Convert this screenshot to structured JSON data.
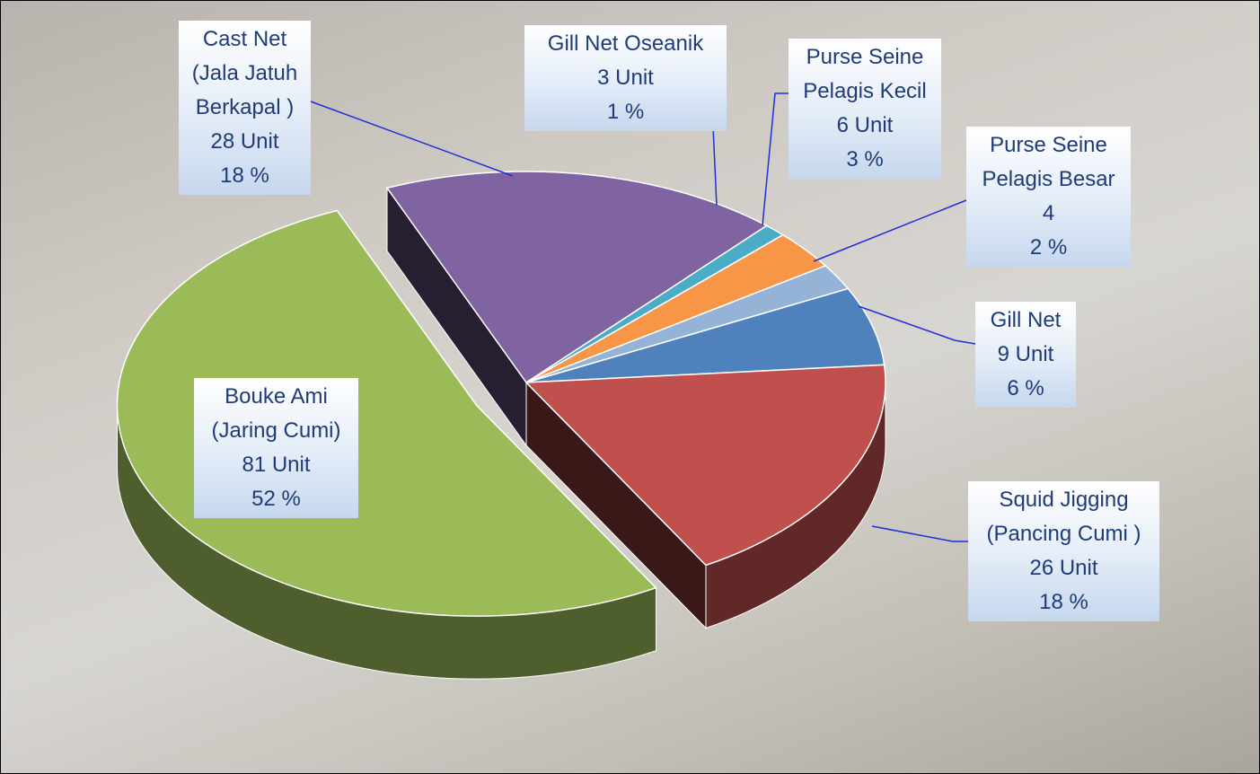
{
  "chart_data": {
    "type": "pie",
    "categories": [
      "Bouke Ami\n(Jaring Cumi)",
      "Cast Net\n(Jala Jatuh\nBerkapal )",
      "Gill Net Oseanik",
      "Purse Seine\nPelagis Kecil",
      "Purse Seine\nPelagis Besar",
      "Gill Net",
      "Squid Jigging\n(Pancing Cumi )"
    ],
    "values": [
      52,
      18,
      1,
      3,
      2,
      6,
      18
    ],
    "value_labels": [
      "52 %",
      "18 %",
      "1 %",
      "3 %",
      "2 %",
      "6 %",
      "18 %"
    ],
    "unit_labels": [
      "81 Unit",
      "28 Unit",
      "3 Unit",
      "6 Unit",
      "4",
      "9 Unit",
      "26 Unit"
    ],
    "colors": [
      "#9bbb59",
      "#8064a2",
      "#4bacc6",
      "#f79646",
      "#95b3d7",
      "#4f81bd",
      "#c0504d"
    ]
  }
}
